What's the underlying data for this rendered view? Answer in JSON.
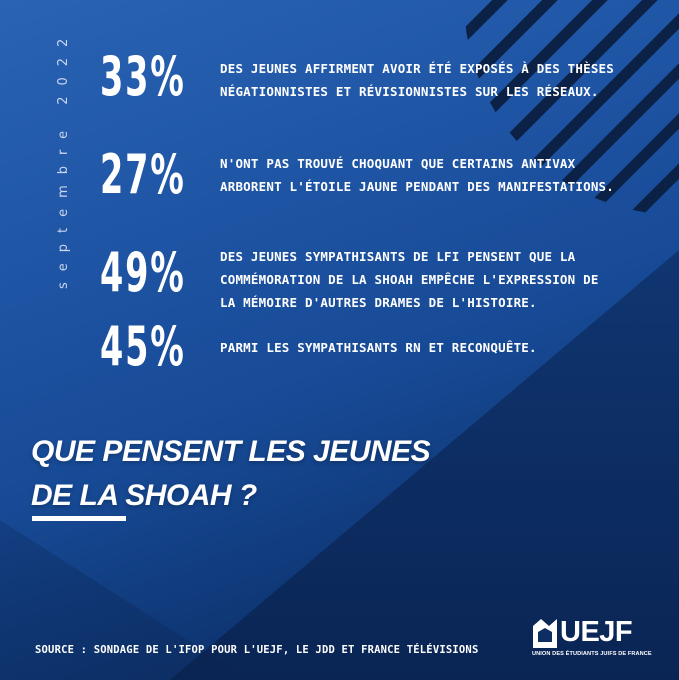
{
  "date_label": "septembre 2022",
  "stats": [
    {
      "percent": "33%",
      "text_lines": [
        "DES JEUNES AFFIRMENT AVOIR ÉTÉ EXPOSÉS À DES THÈSES",
        "NÉGATIONNISTES ET RÉVISIONNISTES SUR LES RÉSEAUX."
      ]
    },
    {
      "percent": "27%",
      "text_lines": [
        "N'ONT PAS TROUVÉ CHOQUANT QUE CERTAINS ANTIVAX",
        "ARBORENT L'ÉTOILE JAUNE PENDANT DES MANIFESTATIONS."
      ]
    },
    {
      "percent": "49%",
      "text_lines": [
        "DES JEUNES SYMPATHISANTS DE LFI PENSENT QUE LA",
        "COMMÉMORATION DE LA SHOAH EMPÊCHE L'EXPRESSION DE",
        "LA MÉMOIRE D'AUTRES DRAMES DE L'HISTOIRE."
      ]
    },
    {
      "percent": "45%",
      "text_lines": [
        "PARMI LES SYMPATHISANTS RN ET RECONQUÊTE."
      ]
    }
  ],
  "headline": {
    "line1": "QUE PENSENT LES JEUNES",
    "line2": "DE LA SHOAH ?"
  },
  "source": "SOURCE : SONDAGE DE L'IFOP POUR L'UEJF, LE JDD ET FRANCE TÉLÉVISIONS",
  "logo": {
    "name": "UEJF",
    "tagline": "UNION DES ÉTUDIANTS JUIFS DE FRANCE"
  },
  "colors": {
    "background": "#1f55a5",
    "background_dark": "#0a2656",
    "text": "#ffffff",
    "stripes": "#0b2146"
  }
}
